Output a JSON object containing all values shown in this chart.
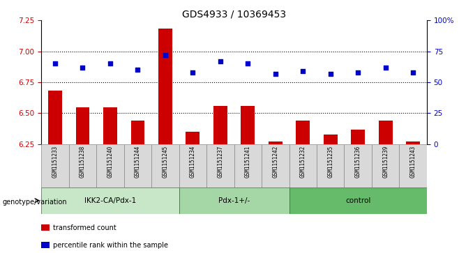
{
  "title": "GDS4933 / 10369453",
  "samples": [
    "GSM1151233",
    "GSM1151238",
    "GSM1151240",
    "GSM1151244",
    "GSM1151245",
    "GSM1151234",
    "GSM1151237",
    "GSM1151241",
    "GSM1151242",
    "GSM1151232",
    "GSM1151235",
    "GSM1151236",
    "GSM1151239",
    "GSM1151243"
  ],
  "red_values": [
    6.68,
    6.55,
    6.55,
    6.44,
    7.18,
    6.35,
    6.56,
    6.56,
    6.27,
    6.44,
    6.33,
    6.37,
    6.44,
    6.27
  ],
  "blue_values": [
    6.9,
    6.87,
    6.9,
    6.85,
    6.97,
    6.83,
    6.92,
    6.9,
    6.82,
    6.84,
    6.82,
    6.83,
    6.87,
    6.83
  ],
  "ylim_left": [
    6.25,
    7.25
  ],
  "ylim_right": [
    0,
    100
  ],
  "yticks_left": [
    6.25,
    6.5,
    6.75,
    7.0,
    7.25
  ],
  "yticks_right": [
    0,
    25,
    50,
    75,
    100
  ],
  "groups": [
    {
      "label": "IKK2-CA/Pdx-1",
      "start": 0,
      "end": 5
    },
    {
      "label": "Pdx-1+/-",
      "start": 5,
      "end": 9
    },
    {
      "label": "control",
      "start": 9,
      "end": 14
    }
  ],
  "group_colors": [
    "#c8e6c8",
    "#a5d6a5",
    "#66bb6a"
  ],
  "bar_color": "#cc0000",
  "dot_color": "#0000cc",
  "bar_width": 0.5,
  "xlabel_group": "genotype/variation",
  "legend_bar": "transformed count",
  "legend_dot": "percentile rank within the sample",
  "hgrid_vals": [
    6.5,
    6.75,
    7.0
  ],
  "left_ax_color": "#cc0000",
  "right_ax_color": "#0000cc"
}
